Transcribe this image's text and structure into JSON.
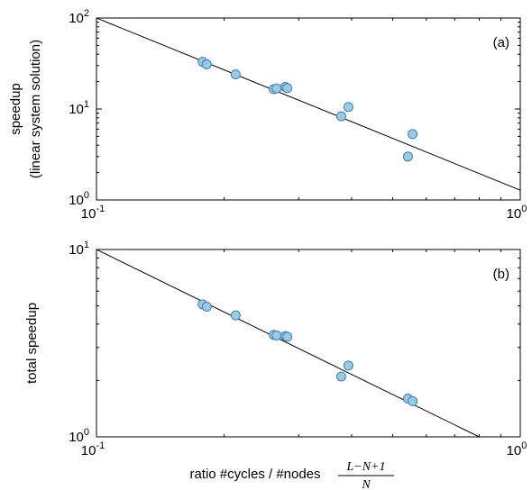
{
  "chart_data": [
    {
      "type": "scatter",
      "panel_label": "(a)",
      "ylabel_lines": [
        "speedup",
        "(linear system solution)"
      ],
      "xscale": "log",
      "yscale": "log",
      "xlim": [
        0.1,
        1.0
      ],
      "ylim": [
        1,
        100
      ],
      "x_ticks": [
        {
          "mant": "10",
          "exp": "-1"
        },
        {
          "mant": "10",
          "exp": "0"
        }
      ],
      "y_ticks": [
        {
          "mant": "10",
          "exp": "0"
        },
        {
          "mant": "10",
          "exp": "1"
        },
        {
          "mant": "10",
          "exp": "2"
        }
      ],
      "points": [
        {
          "x": 0.178,
          "y": 33
        },
        {
          "x": 0.182,
          "y": 31
        },
        {
          "x": 0.213,
          "y": 24
        },
        {
          "x": 0.262,
          "y": 16.5
        },
        {
          "x": 0.266,
          "y": 16.8
        },
        {
          "x": 0.279,
          "y": 17.5
        },
        {
          "x": 0.282,
          "y": 17.0
        },
        {
          "x": 0.378,
          "y": 8.3
        },
        {
          "x": 0.393,
          "y": 10.5
        },
        {
          "x": 0.543,
          "y": 3.0
        },
        {
          "x": 0.557,
          "y": 5.3
        }
      ],
      "fit_line": {
        "x": [
          0.1,
          1.0
        ],
        "y": [
          100,
          1.28
        ]
      }
    },
    {
      "type": "scatter",
      "panel_label": "(b)",
      "ylabel_lines": [
        "total speedup"
      ],
      "xscale": "log",
      "yscale": "log",
      "xlim": [
        0.1,
        1.0
      ],
      "ylim": [
        1,
        10
      ],
      "x_ticks": [
        {
          "mant": "10",
          "exp": "-1"
        },
        {
          "mant": "10",
          "exp": "0"
        }
      ],
      "y_ticks": [
        {
          "mant": "10",
          "exp": "0"
        },
        {
          "mant": "10",
          "exp": "1"
        }
      ],
      "points": [
        {
          "x": 0.178,
          "y": 5.1
        },
        {
          "x": 0.182,
          "y": 4.95
        },
        {
          "x": 0.213,
          "y": 4.45
        },
        {
          "x": 0.262,
          "y": 3.5
        },
        {
          "x": 0.266,
          "y": 3.48
        },
        {
          "x": 0.279,
          "y": 3.45
        },
        {
          "x": 0.282,
          "y": 3.42
        },
        {
          "x": 0.378,
          "y": 2.1
        },
        {
          "x": 0.393,
          "y": 2.4
        },
        {
          "x": 0.543,
          "y": 1.6
        },
        {
          "x": 0.557,
          "y": 1.55
        }
      ],
      "fit_line": {
        "x": [
          0.1,
          0.8
        ],
        "y": [
          10,
          1.0
        ]
      }
    }
  ],
  "xlabel": "ratio #cycles / #nodes",
  "fraction": {
    "numerator": "L−N+1",
    "denominator": "N"
  },
  "colors": {
    "marker_fill": "#9ecae1",
    "marker_edge": "#3a7fb8",
    "line": "#000000"
  }
}
